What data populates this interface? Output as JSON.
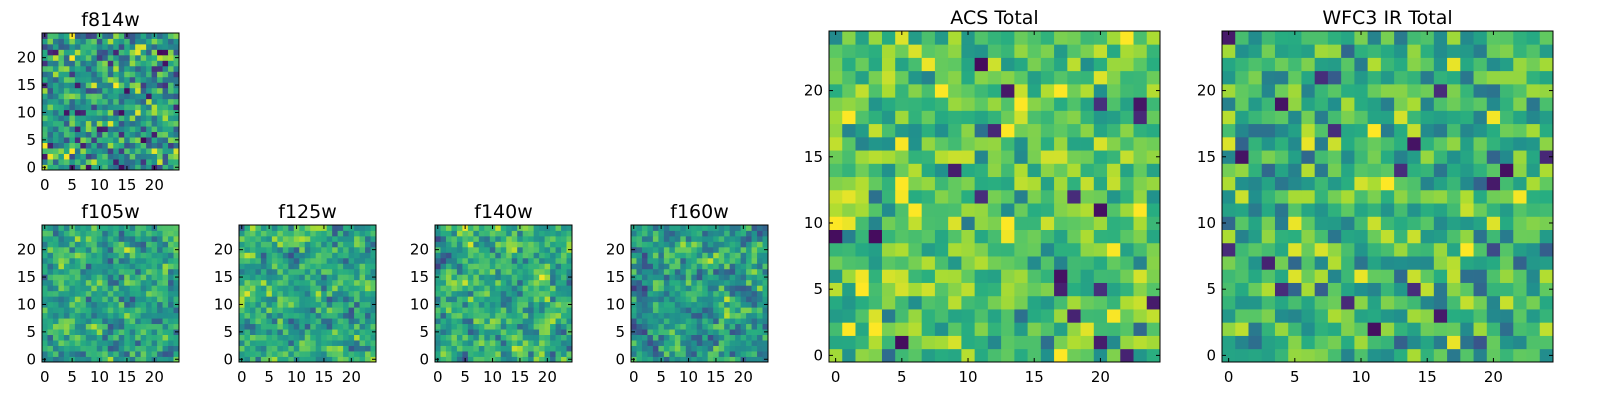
{
  "chart_data": [
    {
      "id": "f814w",
      "type": "heatmap",
      "title": "f814w",
      "grid": 25,
      "xticks": [
        0,
        5,
        10,
        15,
        20
      ],
      "yticks": [
        0,
        5,
        10,
        15,
        20
      ],
      "colormap": "viridis",
      "seed": 17,
      "smooth": 0,
      "bias": 0.55,
      "spread": 0.28
    },
    {
      "id": "f105w",
      "type": "heatmap",
      "title": "f105w",
      "grid": 25,
      "xticks": [
        0,
        5,
        10,
        15,
        20
      ],
      "yticks": [
        0,
        5,
        10,
        15,
        20
      ],
      "colormap": "viridis",
      "seed": 29,
      "smooth": 1,
      "bias": 0.6,
      "spread": 0.3
    },
    {
      "id": "f125w",
      "type": "heatmap",
      "title": "f125w",
      "grid": 25,
      "xticks": [
        0,
        5,
        10,
        15,
        20
      ],
      "yticks": [
        0,
        5,
        10,
        15,
        20
      ],
      "colormap": "viridis",
      "seed": 41,
      "smooth": 1,
      "bias": 0.62,
      "spread": 0.3
    },
    {
      "id": "f140w",
      "type": "heatmap",
      "title": "f140w",
      "grid": 25,
      "xticks": [
        0,
        5,
        10,
        15,
        20
      ],
      "yticks": [
        0,
        5,
        10,
        15,
        20
      ],
      "colormap": "viridis",
      "seed": 53,
      "smooth": 1,
      "bias": 0.63,
      "spread": 0.3
    },
    {
      "id": "f160w",
      "type": "heatmap",
      "title": "f160w",
      "grid": 25,
      "xticks": [
        0,
        5,
        10,
        15,
        20
      ],
      "yticks": [
        0,
        5,
        10,
        15,
        20
      ],
      "colormap": "viridis",
      "seed": 67,
      "smooth": 1,
      "bias": 0.55,
      "spread": 0.34
    },
    {
      "id": "acs_total",
      "type": "heatmap",
      "title": "ACS Total",
      "grid": 25,
      "xticks": [
        0,
        5,
        10,
        15,
        20
      ],
      "yticks": [
        0,
        5,
        10,
        15,
        20
      ],
      "colormap": "viridis",
      "seed": 83,
      "smooth": 0,
      "bias": 0.72,
      "spread": 0.2
    },
    {
      "id": "wfc3_ir_total",
      "type": "heatmap",
      "title": "WFC3 IR Total",
      "grid": 25,
      "xticks": [
        0,
        5,
        10,
        15,
        20
      ],
      "yticks": [
        0,
        5,
        10,
        15,
        20
      ],
      "colormap": "viridis",
      "seed": 97,
      "smooth": 0,
      "bias": 0.66,
      "spread": 0.22
    }
  ]
}
